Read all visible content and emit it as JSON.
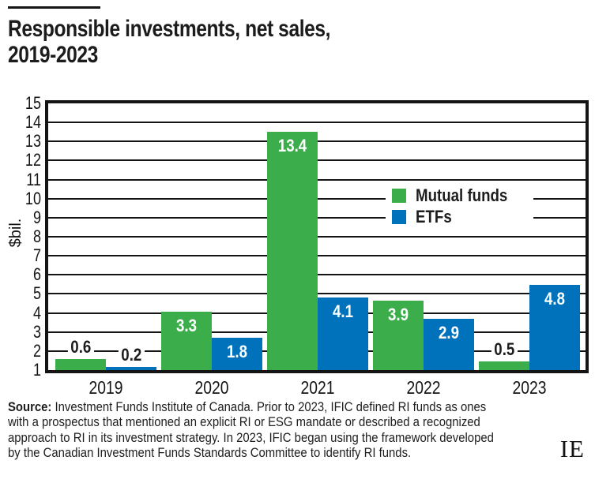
{
  "title": {
    "line1": "Responsible investments, net sales,",
    "line2": "2019-2023"
  },
  "y_axis_label": "$bil.",
  "legend": {
    "items": [
      {
        "label": "Mutual funds",
        "color": "#3bae4b"
      },
      {
        "label": "ETFs",
        "color": "#0072bc"
      }
    ]
  },
  "source": {
    "label": "Source:",
    "text": " Investment Funds Institute of Canada. Prior to 2023, IFIC defined RI funds as ones with a prospectus that mentioned an explicit RI or ESG mandate or described a recognized approach to RI in its investment strategy. In 2023, IFIC began using the framework developed by the Canadian Investment Funds Standards Committee to identify RI funds."
  },
  "logo_text": "IE",
  "colors": {
    "mutual_funds": "#3bae4b",
    "etfs": "#0072bc",
    "ink": "#141414"
  },
  "chart_data": {
    "type": "bar",
    "title": "Responsible investments, net sales, 2019-2023",
    "categories": [
      "2019",
      "2020",
      "2021",
      "2022",
      "2023"
    ],
    "series": [
      {
        "name": "Mutual funds",
        "color": "#3bae4b",
        "values": [
          0.6,
          3.3,
          13.4,
          3.9,
          0.5
        ]
      },
      {
        "name": "ETFs",
        "color": "#0072bc",
        "values": [
          0.2,
          1.8,
          4.1,
          2.9,
          4.8
        ]
      }
    ],
    "xlabel": "",
    "ylabel": "$bil.",
    "ylim": [
      0,
      15
    ],
    "yticks": [
      1,
      2,
      3,
      4,
      5,
      6,
      7,
      8,
      9,
      10,
      11,
      12,
      13,
      14,
      15
    ],
    "grid": true,
    "legend_position": "inside-right",
    "value_labels": true
  }
}
